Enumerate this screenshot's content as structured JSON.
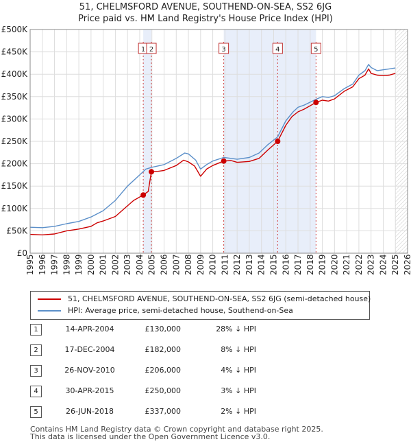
{
  "chart_data": {
    "type": "line",
    "title": "51, CHELMSFORD AVENUE, SOUTHEND-ON-SEA, SS2 6JG",
    "subtitle": "Price paid vs. HM Land Registry's House Price Index (HPI)",
    "xlim": [
      1995,
      2026
    ],
    "ylim": [
      0,
      500000
    ],
    "x_ticks": [
      "1995",
      "1996",
      "1997",
      "1998",
      "1999",
      "2000",
      "2001",
      "2002",
      "2003",
      "2004",
      "2005",
      "2006",
      "2007",
      "2008",
      "2009",
      "2010",
      "2011",
      "2012",
      "2013",
      "2014",
      "2015",
      "2016",
      "2017",
      "2018",
      "2019",
      "2020",
      "2021",
      "2022",
      "2023",
      "2024",
      "2025",
      "2026"
    ],
    "y_ticks": [
      {
        "value": 0,
        "label": "£0"
      },
      {
        "value": 50000,
        "label": "£50K"
      },
      {
        "value": 100000,
        "label": "£100K"
      },
      {
        "value": 150000,
        "label": "£150K"
      },
      {
        "value": 200000,
        "label": "£200K"
      },
      {
        "value": 250000,
        "label": "£250K"
      },
      {
        "value": 300000,
        "label": "£300K"
      },
      {
        "value": 350000,
        "label": "£350K"
      },
      {
        "value": 400000,
        "label": "£400K"
      },
      {
        "value": 450000,
        "label": "£450K"
      },
      {
        "value": 500000,
        "label": "£500K"
      }
    ],
    "shaded_ranges": [
      [
        2004.29,
        2004.96
      ],
      [
        2010.9,
        2018.48
      ]
    ],
    "hatched_from": 2025.0,
    "series": [
      {
        "name": "51, CHELMSFORD AVENUE, SOUTHEND-ON-SEA, SS2 6JG (semi-detached house)",
        "color": "#cc0000",
        "points": [
          [
            1995,
            42000
          ],
          [
            1996,
            41000
          ],
          [
            1997,
            43000
          ],
          [
            1998,
            50000
          ],
          [
            1999,
            54000
          ],
          [
            2000,
            60000
          ],
          [
            2000.5,
            68000
          ],
          [
            2001,
            72000
          ],
          [
            2002,
            82000
          ],
          [
            2003,
            106000
          ],
          [
            2003.5,
            118000
          ],
          [
            2004.29,
            130000
          ],
          [
            2004.7,
            138000
          ],
          [
            2004.96,
            182000
          ],
          [
            2005.5,
            183000
          ],
          [
            2006,
            185000
          ],
          [
            2007,
            196000
          ],
          [
            2007.6,
            208000
          ],
          [
            2008,
            204000
          ],
          [
            2008.5,
            195000
          ],
          [
            2009,
            172000
          ],
          [
            2009.5,
            188000
          ],
          [
            2010,
            196000
          ],
          [
            2010.9,
            206000
          ],
          [
            2011.5,
            207000
          ],
          [
            2012,
            203000
          ],
          [
            2013,
            205000
          ],
          [
            2013.8,
            212000
          ],
          [
            2014.5,
            230000
          ],
          [
            2015.33,
            250000
          ],
          [
            2016,
            286000
          ],
          [
            2016.5,
            305000
          ],
          [
            2017,
            316000
          ],
          [
            2017.5,
            322000
          ],
          [
            2018.48,
            337000
          ],
          [
            2019,
            342000
          ],
          [
            2019.5,
            340000
          ],
          [
            2020,
            345000
          ],
          [
            2020.8,
            362000
          ],
          [
            2021.5,
            372000
          ],
          [
            2022,
            390000
          ],
          [
            2022.5,
            398000
          ],
          [
            2022.8,
            412000
          ],
          [
            2023,
            402000
          ],
          [
            2023.5,
            398000
          ],
          [
            2024,
            397000
          ],
          [
            2024.5,
            398000
          ],
          [
            2025,
            402000
          ]
        ]
      },
      {
        "name": "HPI: Average price, semi-detached house, Southend-on-Sea",
        "color": "#5b8fc9",
        "points": [
          [
            1995,
            58000
          ],
          [
            1996,
            57000
          ],
          [
            1997,
            60000
          ],
          [
            1998,
            66000
          ],
          [
            1999,
            71000
          ],
          [
            2000,
            81000
          ],
          [
            2001,
            95000
          ],
          [
            2002,
            118000
          ],
          [
            2003,
            150000
          ],
          [
            2004,
            175000
          ],
          [
            2004.5,
            188000
          ],
          [
            2005,
            192000
          ],
          [
            2006,
            198000
          ],
          [
            2007,
            212000
          ],
          [
            2007.7,
            224000
          ],
          [
            2008,
            222000
          ],
          [
            2008.6,
            208000
          ],
          [
            2009,
            188000
          ],
          [
            2009.5,
            198000
          ],
          [
            2010,
            206000
          ],
          [
            2010.9,
            214000
          ],
          [
            2011.5,
            212000
          ],
          [
            2012,
            210000
          ],
          [
            2013,
            214000
          ],
          [
            2013.8,
            224000
          ],
          [
            2014.5,
            242000
          ],
          [
            2015.33,
            260000
          ],
          [
            2016,
            296000
          ],
          [
            2016.6,
            316000
          ],
          [
            2017,
            326000
          ],
          [
            2017.5,
            331000
          ],
          [
            2018.48,
            344000
          ],
          [
            2019,
            350000
          ],
          [
            2019.5,
            348000
          ],
          [
            2020,
            352000
          ],
          [
            2020.8,
            368000
          ],
          [
            2021.5,
            378000
          ],
          [
            2022,
            398000
          ],
          [
            2022.5,
            408000
          ],
          [
            2022.8,
            422000
          ],
          [
            2023,
            415000
          ],
          [
            2023.5,
            408000
          ],
          [
            2024,
            410000
          ],
          [
            2024.5,
            412000
          ],
          [
            2025,
            414000
          ]
        ]
      }
    ],
    "sales": [
      {
        "id": "1",
        "x": 2004.29,
        "price": 130000
      },
      {
        "id": "2",
        "x": 2004.96,
        "price": 182000
      },
      {
        "id": "3",
        "x": 2010.9,
        "price": 206000
      },
      {
        "id": "4",
        "x": 2015.33,
        "price": 250000
      },
      {
        "id": "5",
        "x": 2018.48,
        "price": 337000
      }
    ]
  },
  "legend": {
    "property": "51, CHELMSFORD AVENUE, SOUTHEND-ON-SEA, SS2 6JG (semi-detached house)",
    "hpi": "HPI: Average price, semi-detached house, Southend-on-Sea",
    "property_color": "#cc0000",
    "hpi_color": "#5b8fc9"
  },
  "transactions": [
    {
      "num": "1",
      "date": "14-APR-2004",
      "price": "£130,000",
      "hpi": "28% ↓ HPI"
    },
    {
      "num": "2",
      "date": "17-DEC-2004",
      "price": "£182,000",
      "hpi": "8% ↓ HPI"
    },
    {
      "num": "3",
      "date": "26-NOV-2010",
      "price": "£206,000",
      "hpi": "4% ↓ HPI"
    },
    {
      "num": "4",
      "date": "30-APR-2015",
      "price": "£250,000",
      "hpi": "3% ↓ HPI"
    },
    {
      "num": "5",
      "date": "26-JUN-2018",
      "price": "£337,000",
      "hpi": "2% ↓ HPI"
    }
  ],
  "footer": {
    "line1": "Contains HM Land Registry data © Crown copyright and database right 2025.",
    "line2": "This data is licensed under the Open Government Licence v3.0."
  }
}
